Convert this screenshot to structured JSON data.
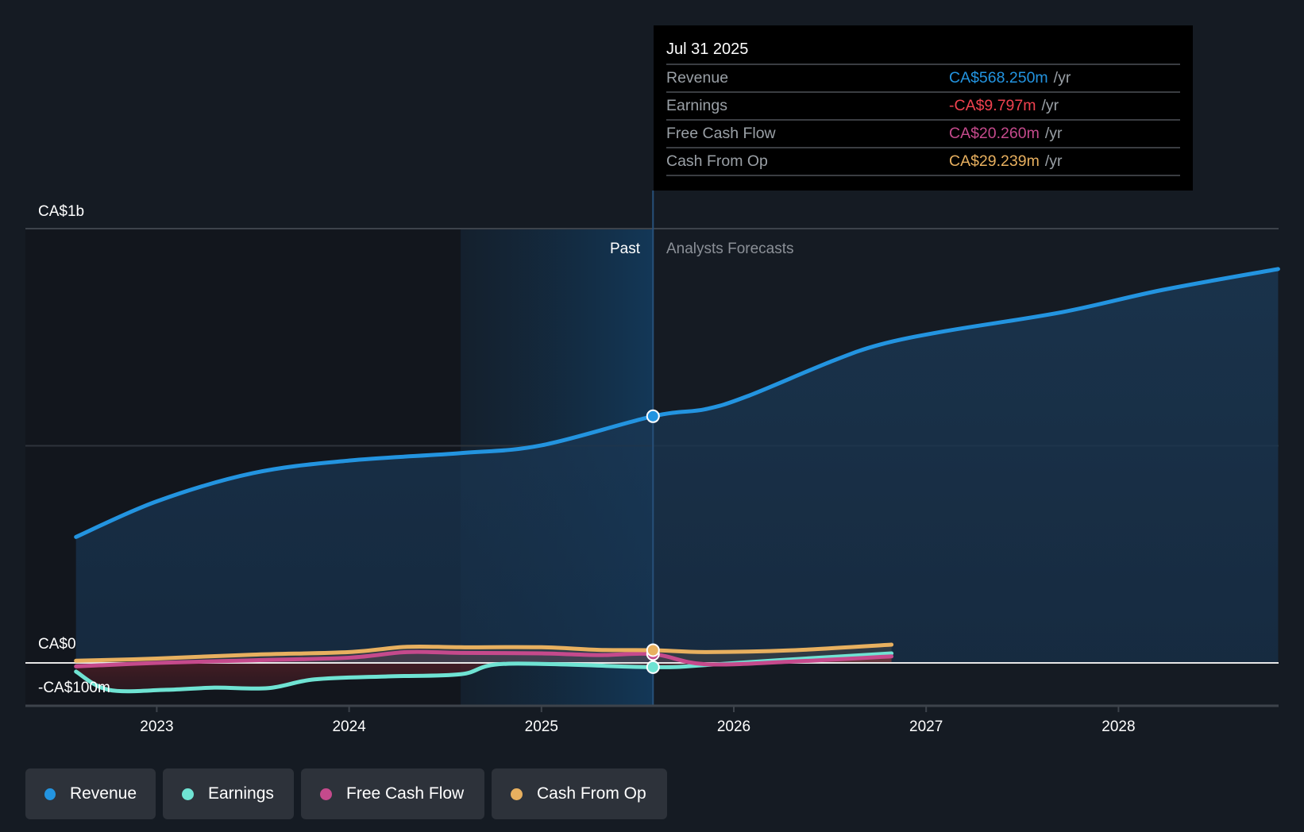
{
  "tooltip": {
    "date": "Jul 31 2025",
    "unit": "/yr",
    "rows": [
      {
        "label": "Revenue",
        "value": "CA$568.250m",
        "color": "#2394e0"
      },
      {
        "label": "Earnings",
        "value": "-CA$9.797m",
        "color": "#f0424f"
      },
      {
        "label": "Free Cash Flow",
        "value": "CA$20.260m",
        "color": "#c54a8c"
      },
      {
        "label": "Cash From Op",
        "value": "CA$29.239m",
        "color": "#e8b05f"
      }
    ]
  },
  "segments": {
    "past": "Past",
    "forecast": "Analysts Forecasts"
  },
  "legend": [
    {
      "label": "Revenue",
      "color": "#2394e0"
    },
    {
      "label": "Earnings",
      "color": "#6fe3d3"
    },
    {
      "label": "Free Cash Flow",
      "color": "#c54a8c"
    },
    {
      "label": "Cash From Op",
      "color": "#e8b05f"
    }
  ],
  "chart_data": {
    "type": "area",
    "title": "",
    "xlabel": "",
    "ylabel": "",
    "currency": "CAD",
    "units": "CA$ millions per year",
    "x_ticks": [
      "2023",
      "2024",
      "2025",
      "2026",
      "2027",
      "2028"
    ],
    "x_tick_values": [
      2023,
      2024,
      2025,
      2026,
      2027,
      2028
    ],
    "y_ticks": [
      {
        "value": 1000,
        "label": "CA$1b"
      },
      {
        "value": 0,
        "label": "CA$0"
      },
      {
        "value": -100,
        "label": "-CA$100m"
      }
    ],
    "xlim": [
      2022.34,
      2028.83
    ],
    "ylim": [
      -100,
      1000
    ],
    "grid": true,
    "past_region": [
      2024.58,
      2025.58
    ],
    "divider_x": 2025.58,
    "highlight_date": "Jul 31 2025",
    "legend_position": "bottom",
    "series": [
      {
        "name": "Revenue",
        "color": "#2394e0",
        "x": [
          2022.58,
          2023.0,
          2023.5,
          2024.0,
          2024.58,
          2025.0,
          2025.58,
          2025.85,
          2026.07,
          2026.5,
          2026.76,
          2027.1,
          2027.71,
          2028.23,
          2028.83
        ],
        "values": [
          290,
          372,
          437,
          466,
          483,
          501,
          568,
          584,
          614,
          693,
          733,
          764,
          808,
          859,
          907
        ]
      },
      {
        "name": "Earnings",
        "color": "#6fe3d3",
        "x": [
          2022.58,
          2022.75,
          2023.05,
          2023.3,
          2023.58,
          2023.82,
          2024.2,
          2024.58,
          2024.82,
          2025.58,
          2025.85,
          2026.3,
          2026.82
        ],
        "values": [
          -20,
          -62,
          -62,
          -57,
          -58,
          -38,
          -31,
          -26,
          -2,
          -9.797,
          -5,
          8,
          22
        ]
      },
      {
        "name": "Free Cash Flow",
        "color": "#c54a8c",
        "x": [
          2022.58,
          2023.0,
          2023.5,
          2024.0,
          2024.3,
          2024.58,
          2025.0,
          2025.3,
          2025.58,
          2025.85,
          2026.3,
          2026.82
        ],
        "values": [
          -8,
          0,
          6,
          12,
          25,
          23,
          22,
          18,
          20.26,
          -3,
          3,
          15
        ]
      },
      {
        "name": "Cash From Op",
        "color": "#e8b05f",
        "x": [
          2022.58,
          2023.0,
          2023.5,
          2024.0,
          2024.3,
          2024.58,
          2025.0,
          2025.3,
          2025.58,
          2025.85,
          2026.3,
          2026.82
        ],
        "values": [
          5,
          10,
          19,
          25,
          37,
          36,
          36,
          30,
          29.239,
          25,
          29,
          42
        ]
      }
    ]
  }
}
